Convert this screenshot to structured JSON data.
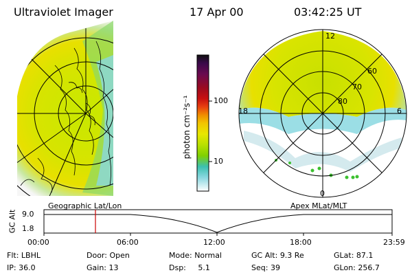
{
  "header": {
    "instrument": "Ultraviolet Imager",
    "date": "17 Apr 00",
    "time": "03:42:25 UT"
  },
  "left_panel": {
    "label": "Geographic Lat/Lon"
  },
  "right_panel": {
    "label": "Apex MLat/MLT",
    "mlt_labels": [
      "12",
      "18",
      "6",
      "0"
    ],
    "mlat_labels": [
      "60",
      "70",
      "80"
    ]
  },
  "colorbar": {
    "unit_label": "photon cm⁻²s⁻¹",
    "tick_labels": [
      "100",
      "10"
    ],
    "colors": [
      "#101010",
      "#3a0a4a",
      "#6a0a50",
      "#9a0a20",
      "#c81010",
      "#e84010",
      "#f08c00",
      "#f2c400",
      "#e8e800",
      "#b8e000",
      "#80d000",
      "#3cc0b0",
      "#8ad8e0",
      "#ffffff"
    ]
  },
  "alt_plot": {
    "ylabel": "GC Alt",
    "y_ticks": [
      "9.0",
      "1.8"
    ],
    "x_ticks": [
      "00:00",
      "06:00",
      "12:00",
      "18:00",
      "23:59"
    ],
    "marker_time": "03:42",
    "marker_color": "#cc0000"
  },
  "info": {
    "row1": [
      {
        "label": "Flt:",
        "value": "LBHL"
      },
      {
        "label": "Door:",
        "value": "Open"
      },
      {
        "label": "Mode:",
        "value": "Normal"
      },
      {
        "label": "GC Alt:",
        "value": "9.3 Re"
      },
      {
        "label": "GLat:",
        "value": "87.1"
      }
    ],
    "row2": [
      {
        "label": "IP:",
        "value": "36.0"
      },
      {
        "label": "Gain:",
        "value": "13"
      },
      {
        "label": "Dsp:",
        "value": "5.1"
      },
      {
        "label": "Seq:",
        "value": "39"
      },
      {
        "label": "GLon:",
        "value": "256.7"
      }
    ]
  }
}
